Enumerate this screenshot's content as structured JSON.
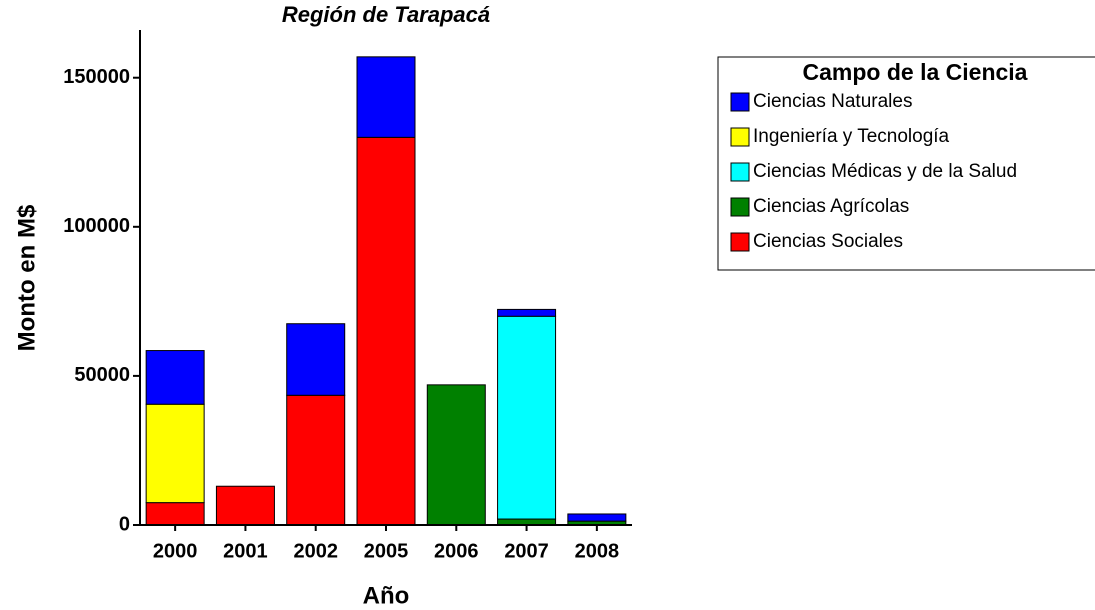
{
  "chart_data": {
    "type": "stacked-bar",
    "title": "Región de Tarapacá",
    "x_label": "Año",
    "y_label": "Monto en M$",
    "categories": [
      "2000",
      "2001",
      "2002",
      "2005",
      "2006",
      "2007",
      "2008"
    ],
    "legend_title": "Campo de la Ciencia",
    "legend_position": "right",
    "series": [
      {
        "name": "Ciencias Naturales",
        "color": "#0000ff",
        "values": [
          18000,
          0,
          24000,
          27000,
          0,
          2300,
          2400
        ]
      },
      {
        "name": "Ingeniería y Tecnología",
        "color": "#ffff00",
        "values": [
          33000,
          0,
          0,
          0,
          0,
          0,
          0
        ]
      },
      {
        "name": "Ciencias Médicas y de la Salud",
        "color": "#00ffff",
        "values": [
          0,
          0,
          0,
          0,
          0,
          68000,
          0
        ]
      },
      {
        "name": "Ciencias Agrícolas",
        "color": "#008000",
        "values": [
          0,
          0,
          0,
          0,
          47000,
          2000,
          1300
        ]
      },
      {
        "name": "Ciencias Sociales",
        "color": "#ff0000",
        "values": [
          7500,
          13000,
          43500,
          130000,
          0,
          0,
          0
        ]
      }
    ],
    "ylim": [
      0,
      166000
    ],
    "yticks": [
      0,
      50000,
      100000,
      150000
    ]
  }
}
